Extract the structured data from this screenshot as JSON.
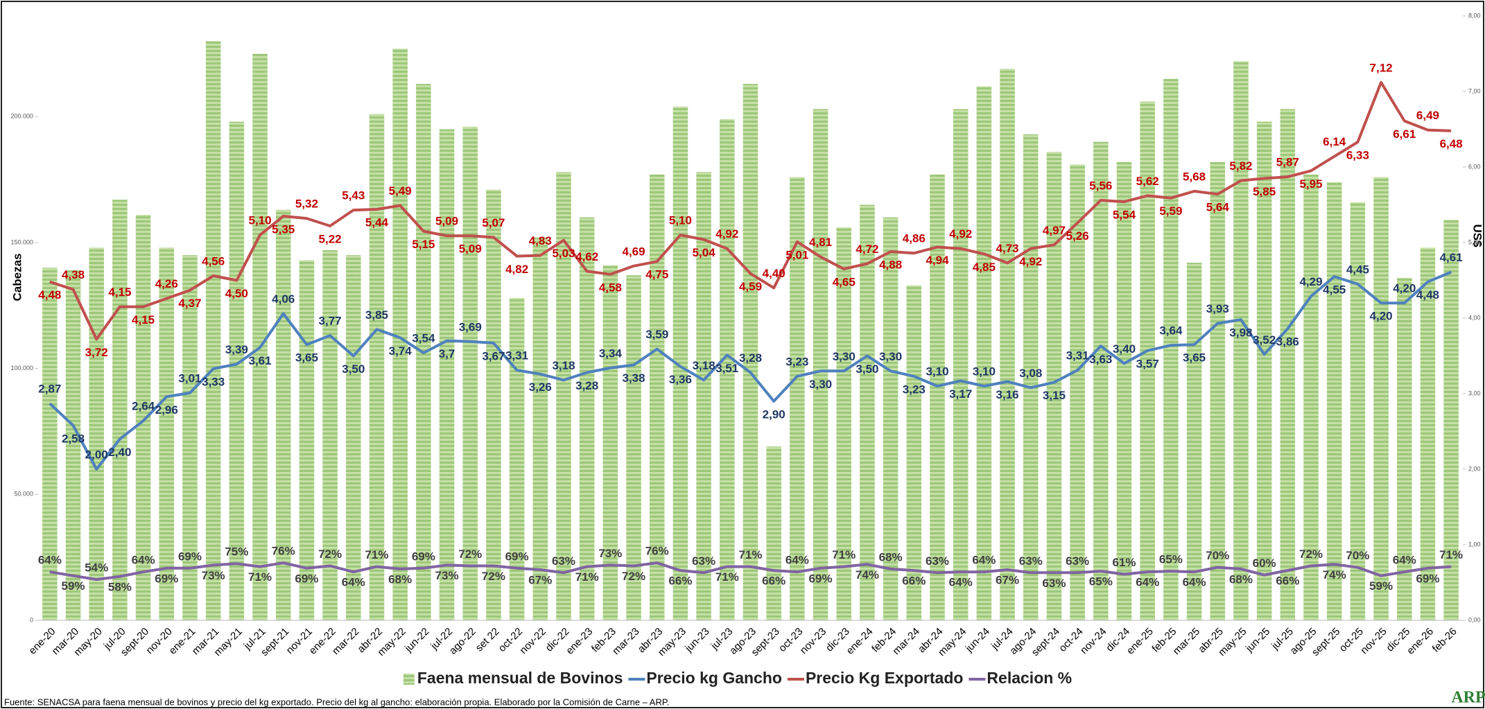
{
  "chart_data": {
    "type": "combo",
    "y_label": "Cabezas",
    "y2_label": "US$",
    "source": "Fuente: SENACSA para faena mensual de bovinos y precio del kg exportado. Precio del kg al gancho: elaboración propia. Elaborado por la Comisión de Carne – ARP.",
    "logo": "ARP",
    "categories": [
      "ene-20",
      "mar-20",
      "may-20",
      "jul-20",
      "sept-20",
      "nov-20",
      "ene-21",
      "mar-21",
      "may-21",
      "jul-21",
      "sept-21",
      "nov-21",
      "ene-22",
      "mar-22",
      "abr-22",
      "may-22",
      "jun-22",
      "jul-22",
      "ago-22",
      "set 22",
      "oct-22",
      "nov-22",
      "dic-22",
      "ene-23",
      "feb-23",
      "mar-23",
      "abr-23",
      "may-23",
      "jun-23",
      "jul-23",
      "ago-23",
      "sept-23",
      "oct-23",
      "nov-23",
      "dic-23",
      "ene-24",
      "feb-24",
      "mar-24",
      "abr-24",
      "may-24",
      "jun-24",
      "jul-24",
      "ago-24",
      "sept-24",
      "oct-24",
      "nov-24",
      "dic-24",
      "ene-25",
      "feb-25",
      "mar-25",
      "abr-25",
      "may-25",
      "jun-25",
      "jul-25",
      "ago-25",
      "sept-25",
      "oct-25",
      "nov-25",
      "dic-25",
      "ene-26",
      "feb-26"
    ],
    "ylim": [
      0,
      240000
    ],
    "yticks": [
      0,
      {
        "value": 50000,
        "label": "50.000"
      },
      {
        "value": 100000,
        "label": "100.000"
      },
      {
        "value": 150000,
        "label": "150.000"
      },
      {
        "value": 200000,
        "label": "200.000"
      }
    ],
    "y2lim": [
      0,
      8
    ],
    "y2ticks": [
      {
        "value": 0,
        "label": "0,00"
      },
      {
        "value": 1,
        "label": "1,00"
      },
      {
        "value": 2,
        "label": "2,00"
      },
      {
        "value": 3,
        "label": "3,00"
      },
      {
        "value": 4,
        "label": "4,00"
      },
      {
        "value": 5,
        "label": "5,00"
      },
      {
        "value": 6,
        "label": "6,00"
      },
      {
        "value": 7,
        "label": "7,00"
      },
      {
        "value": 8,
        "label": "8,00"
      }
    ],
    "y3lim": [
      0,
      800
    ],
    "series": [
      {
        "name": "Faena mensual de Bovinos",
        "type": "bar",
        "axis": "y",
        "color": "#a9d08e",
        "values": [
          140000,
          139000,
          148000,
          167000,
          161000,
          148000,
          145000,
          230000,
          198000,
          225000,
          163000,
          143000,
          147000,
          145000,
          201000,
          227000,
          213000,
          195000,
          196000,
          171000,
          128000,
          152000,
          178000,
          160000,
          141000,
          137000,
          177000,
          204000,
          178000,
          199000,
          213000,
          69000,
          176000,
          203000,
          156000,
          165000,
          160000,
          133000,
          177000,
          203000,
          212000,
          219000,
          193000,
          186000,
          181000,
          190000,
          182000,
          206000,
          215000,
          142000,
          182000,
          222000,
          198000,
          203000,
          177000,
          174000,
          166000,
          176000,
          136000,
          148000,
          159000
        ]
      },
      {
        "name": "Precio kg Gancho",
        "type": "line",
        "axis": "y2",
        "color": "#4f81bd",
        "label_color": "#1f3864",
        "values": [
          2.87,
          2.58,
          2.0,
          2.4,
          2.64,
          2.96,
          3.01,
          3.33,
          3.39,
          3.61,
          4.06,
          3.65,
          3.77,
          3.5,
          3.85,
          3.74,
          3.54,
          3.7,
          3.69,
          3.67,
          3.31,
          3.26,
          3.18,
          3.28,
          3.34,
          3.38,
          3.59,
          3.36,
          3.18,
          3.51,
          3.28,
          2.9,
          3.23,
          3.3,
          3.3,
          3.5,
          3.3,
          3.23,
          3.1,
          3.17,
          3.1,
          3.16,
          3.08,
          3.15,
          3.31,
          3.63,
          3.4,
          3.57,
          3.64,
          3.65,
          3.93,
          3.98,
          3.52,
          3.86,
          4.29,
          4.55,
          4.45,
          4.2,
          4.2,
          4.48,
          4.61
        ],
        "value_labels": [
          "2,87",
          "2,58",
          "2,00",
          "2,40",
          "2,64",
          "2,96",
          "3,01",
          "3,33",
          "3,39",
          "3,61",
          "4,06",
          "3,65",
          "3,77",
          "3,50",
          "3,85",
          "3,74",
          "3,54",
          "3,7",
          "3,69",
          "3,67",
          "3,31",
          "3,26",
          "3,18",
          "3,28",
          "3,34",
          "3,38",
          "3,59",
          "3,36",
          "3,18",
          "3,51",
          "3,28",
          "2,90",
          "3,23",
          "3,30",
          "3,30",
          "3,50",
          "3,30",
          "3,23",
          "3,10",
          "3,17",
          "3,10",
          "3,16",
          "3,08",
          "3,15",
          "3,31",
          "3,63",
          "3,40",
          "3,57",
          "3,64",
          "3,65",
          "3,93",
          "3,98",
          "3,52",
          "3,86",
          "4,29",
          "4,55",
          "4,45",
          "4,20",
          "4,20",
          "4,48",
          "4,61"
        ]
      },
      {
        "name": "Precio Kg Exportado",
        "type": "line",
        "axis": "y2",
        "color": "#c0504d",
        "label_color": "#c00000",
        "values": [
          4.48,
          4.38,
          3.72,
          4.15,
          4.15,
          4.26,
          4.37,
          4.56,
          4.5,
          5.1,
          5.35,
          5.32,
          5.22,
          5.43,
          5.44,
          5.49,
          5.15,
          5.09,
          5.09,
          5.07,
          4.82,
          4.83,
          5.03,
          4.62,
          4.58,
          4.69,
          4.75,
          5.1,
          5.04,
          4.92,
          4.59,
          4.4,
          5.01,
          4.81,
          4.65,
          4.72,
          4.88,
          4.86,
          4.94,
          4.92,
          4.85,
          4.73,
          4.92,
          4.97,
          5.26,
          5.56,
          5.54,
          5.62,
          5.59,
          5.68,
          5.64,
          5.82,
          5.85,
          5.87,
          5.95,
          6.14,
          6.33,
          7.12,
          6.61,
          6.49,
          6.48
        ],
        "value_labels": [
          "4,48",
          "4,38",
          "3,72",
          "4,15",
          "4,15",
          "4,26",
          "4,37",
          "4,56",
          "4,50",
          "5,10",
          "5,35",
          "5,32",
          "5,22",
          "5,43",
          "5,44",
          "5,49",
          "5,15",
          "5,09",
          "5,09",
          "5,07",
          "4,82",
          "4,83",
          "5,03",
          "4,62",
          "4,58",
          "4,69",
          "4,75",
          "5,10",
          "5,04",
          "4,92",
          "4,59",
          "4,40",
          "5,01",
          "4,81",
          "4,65",
          "4,72",
          "4,88",
          "4,86",
          "4,94",
          "4,92",
          "4,85",
          "4,73",
          "4,92",
          "4,97",
          "5,26",
          "5,56",
          "5,54",
          "5,62",
          "5,59",
          "5,68",
          "5,64",
          "5,82",
          "5,85",
          "5,87",
          "5,95",
          "6,14",
          "6,33",
          "7,12",
          "6,61",
          "6,49",
          "6,48"
        ]
      },
      {
        "name": "Relacion %",
        "type": "line",
        "axis": "y3",
        "color": "#8064a2",
        "label_color": "#404040",
        "values": [
          64,
          59,
          54,
          58,
          64,
          69,
          69,
          73,
          75,
          71,
          76,
          69,
          72,
          64,
          71,
          68,
          69,
          73,
          72,
          72,
          69,
          67,
          63,
          71,
          73,
          72,
          76,
          66,
          63,
          71,
          71,
          66,
          64,
          69,
          71,
          74,
          68,
          66,
          63,
          64,
          64,
          67,
          63,
          63,
          63,
          65,
          61,
          64,
          65,
          64,
          70,
          68,
          60,
          66,
          72,
          74,
          70,
          59,
          64,
          69,
          71
        ],
        "value_labels": [
          "64%",
          "59%",
          "54%",
          "58%",
          "64%",
          "69%",
          "69%",
          "73%",
          "75%",
          "71%",
          "76%",
          "69%",
          "72%",
          "64%",
          "71%",
          "68%",
          "69%",
          "73%",
          "72%",
          "72%",
          "69%",
          "67%",
          "63%",
          "71%",
          "73%",
          "72%",
          "76%",
          "66%",
          "63%",
          "71%",
          "71%",
          "66%",
          "64%",
          "69%",
          "71%",
          "74%",
          "68%",
          "66%",
          "63%",
          "64%",
          "64%",
          "67%",
          "63%",
          "63%",
          "63%",
          "65%",
          "61%",
          "64%",
          "65%",
          "64%",
          "70%",
          "68%",
          "60%",
          "66%",
          "72%",
          "74%",
          "70%",
          "59%",
          "64%",
          "69%",
          "71%"
        ]
      }
    ]
  }
}
